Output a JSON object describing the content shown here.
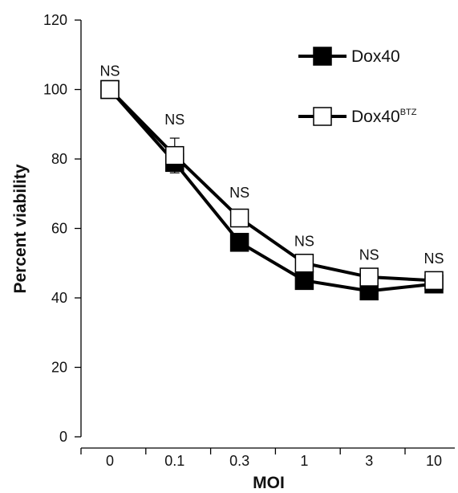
{
  "chart_data": {
    "type": "line",
    "title": "",
    "xlabel": "MOI",
    "ylabel": "Percent viability",
    "categories": [
      "0",
      "0.1",
      "0.3",
      "1",
      "3",
      "10"
    ],
    "yticks": [
      0,
      20,
      40,
      60,
      80,
      100,
      120
    ],
    "ylim": [
      0,
      120
    ],
    "grid": false,
    "legend_position": "top-right",
    "series": [
      {
        "name": "Dox40",
        "name_superscript": "",
        "marker": "filled-square",
        "values": [
          100,
          79,
          56,
          45,
          42,
          44
        ],
        "errors": [
          0,
          2,
          2,
          1,
          1,
          1
        ]
      },
      {
        "name": "Dox40",
        "name_superscript": "BTZ",
        "marker": "open-square",
        "values": [
          100,
          81,
          63,
          50,
          46,
          45
        ],
        "errors": [
          0,
          5,
          2,
          1,
          1,
          1
        ]
      }
    ],
    "annotations": [
      "NS",
      "NS",
      "NS",
      "NS",
      "NS",
      "NS"
    ],
    "colors": {
      "line": "#000000",
      "filled_marker": "#000000",
      "open_marker": "#ffffff"
    }
  }
}
